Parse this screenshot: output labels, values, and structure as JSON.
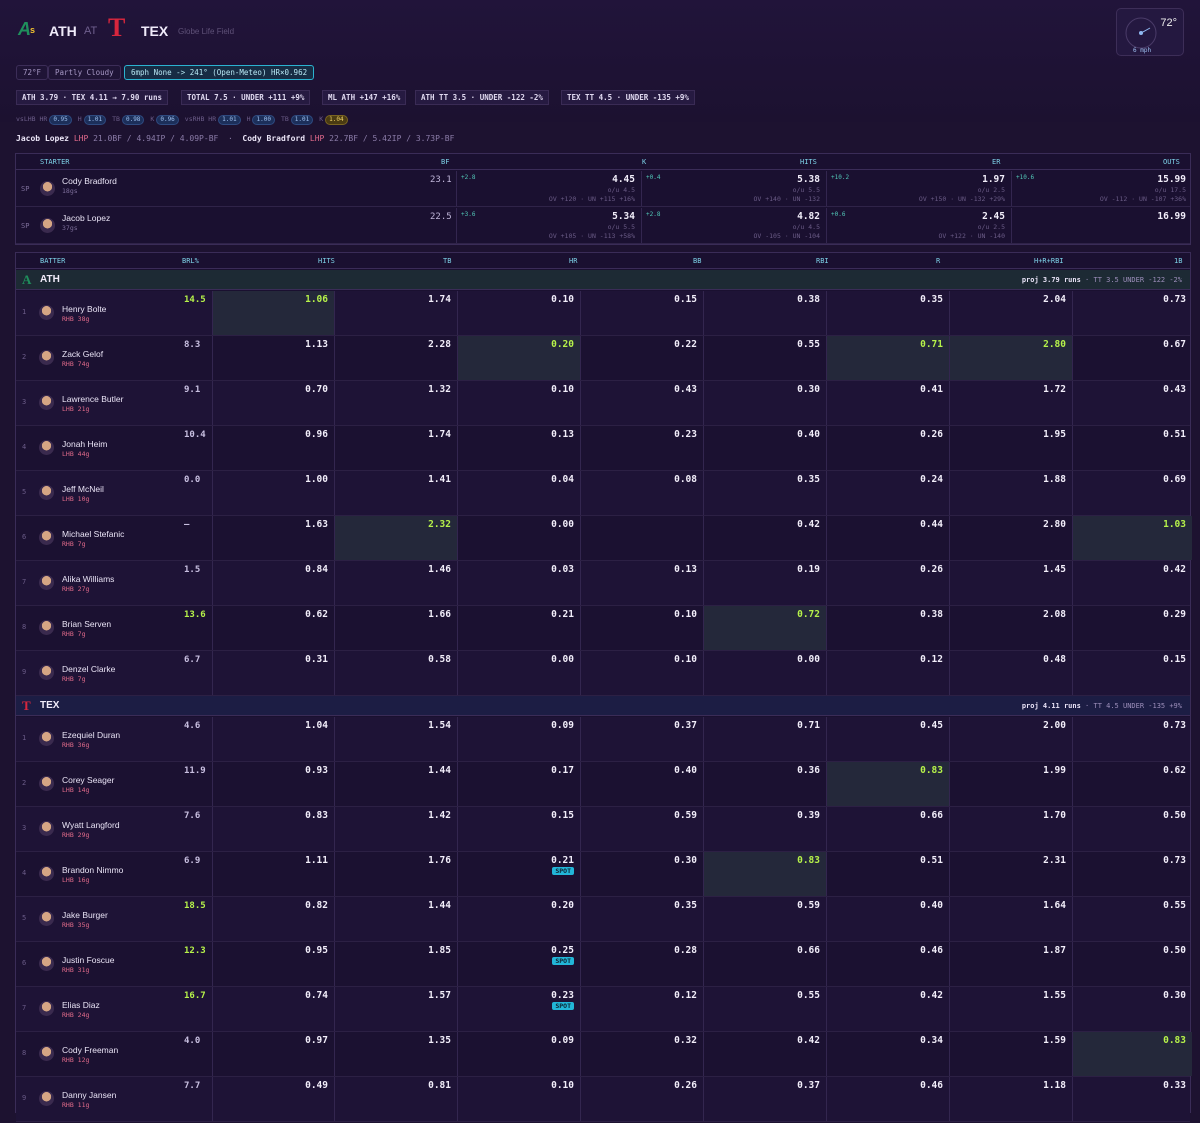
{
  "header": {
    "away_abbr": "ATH",
    "at": "AT",
    "home_abbr": "TEX",
    "venue": "Globe Life Field",
    "weather_temp": "72°",
    "weather_wind": "6 mph"
  },
  "chips": {
    "temp": "72°F",
    "sky": "Partly Cloudy",
    "wind": "6mph None -> 241° (Open-Meteo) HR×0.962"
  },
  "markets": [
    "ATH 3.79 · TEX 4.11 → 7.90 runs",
    "TOTAL 7.5 · UNDER +111 +9%",
    "ML ATH +147 +16%",
    "ATH TT 3.5 · UNDER -122 -2%",
    "TEX TT 4.5 · UNDER -135 +9%"
  ],
  "park_factors": [
    {
      "k": "vsLHB HR",
      "v": "0.95"
    },
    {
      "k": "H",
      "v": "1.01"
    },
    {
      "k": "TB",
      "v": "0.98"
    },
    {
      "k": "K",
      "v": "0.96"
    },
    {
      "k": "vsRHB HR",
      "v": "1.01"
    },
    {
      "k": "H",
      "v": "1.00"
    },
    {
      "k": "TB",
      "v": "1.01"
    },
    {
      "k": "K",
      "v": "1.04"
    }
  ],
  "probables": {
    "away_name": "Jacob Lopez",
    "away_hand": "LHP",
    "away_line": "21.0BF / 4.94IP / 4.09P-BF",
    "home_name": "Cody Bradford",
    "home_hand": "LHP",
    "home_line": "22.7BF / 5.42IP / 3.73P-BF"
  },
  "pitcher_table": {
    "headers": [
      "STARTER",
      "BF",
      "K",
      "HITS",
      "ER",
      "OUTS"
    ],
    "rows": [
      {
        "role": "SP",
        "name": "Cody Bradford",
        "sub": "18gs",
        "bf": "23.1",
        "k": {
          "v": "4.45",
          "edge": "+2.8",
          "line": "o/u 4.5",
          "odds": "OV +120 · UN +115 +16%"
        },
        "hits": {
          "v": "5.38",
          "edge": "+0.4",
          "line": "o/u 5.5",
          "odds": "OV +140 · UN -132"
        },
        "er": {
          "v": "1.97",
          "edge": "+10.2",
          "line": "o/u 2.5",
          "odds": "OV +150 · UN -132 +29%"
        },
        "outs": {
          "v": "15.99",
          "edge": "+10.6",
          "line": "o/u 17.5",
          "odds": "OV -112 · UN -107 +36%"
        }
      },
      {
        "role": "SP",
        "name": "Jacob Lopez",
        "sub": "37gs",
        "bf": "22.5",
        "k": {
          "v": "5.34",
          "edge": "+3.6",
          "line": "o/u 5.5",
          "odds": "OV +105 · UN -113 +58%"
        },
        "hits": {
          "v": "4.82",
          "edge": "+2.8",
          "line": "o/u 4.5",
          "odds": "OV -105 · UN -104"
        },
        "er": {
          "v": "2.45",
          "edge": "+0.6",
          "line": "o/u 2.5",
          "odds": "OV +122 · UN -140"
        },
        "outs": {
          "v": "16.99",
          "edge": "",
          "line": "",
          "odds": ""
        }
      }
    ]
  },
  "batter_headers": [
    "BATTER",
    "BRL%",
    "HITS",
    "TB",
    "HR",
    "BB",
    "RBI",
    "R",
    "H+R+RBI",
    "1B"
  ],
  "teams": [
    {
      "abbr": "ATH",
      "proj": "proj 3.79 runs",
      "tt": "TT 3.5 UNDER -122 -2%",
      "batters": [
        {
          "o": "1",
          "name": "Henry Bolte",
          "hand": "RHB 38g",
          "brl": "14.5",
          "c": [
            "1.06",
            "1.74",
            "0.10",
            "0.15",
            "0.38",
            "0.35",
            "2.04",
            "0.73"
          ]
        },
        {
          "o": "2",
          "name": "Zack Gelof",
          "hand": "RHB 74g",
          "brl": "8.3",
          "c": [
            "1.13",
            "2.28",
            "0.20",
            "0.22",
            "0.55",
            "0.71",
            "2.80",
            "0.67"
          ]
        },
        {
          "o": "3",
          "name": "Lawrence Butler",
          "hand": "LHB 21g",
          "brl": "9.1",
          "c": [
            "0.70",
            "1.32",
            "0.10",
            "0.43",
            "0.30",
            "0.41",
            "1.72",
            "0.43"
          ]
        },
        {
          "o": "4",
          "name": "Jonah Heim",
          "hand": "LHB 44g",
          "brl": "10.4",
          "c": [
            "0.96",
            "1.74",
            "0.13",
            "0.23",
            "0.40",
            "0.26",
            "1.95",
            "0.51"
          ]
        },
        {
          "o": "5",
          "name": "Jeff McNeil",
          "hand": "LHB 10g",
          "brl": "0.0",
          "c": [
            "1.00",
            "1.41",
            "0.04",
            "0.08",
            "0.35",
            "0.24",
            "1.88",
            "0.69"
          ]
        },
        {
          "o": "6",
          "name": "Michael Stefanic",
          "hand": "RHB 7g",
          "brl": "—",
          "c": [
            "1.63",
            "2.32",
            "0.00",
            "",
            "0.42",
            "0.44",
            "2.80",
            "1.03"
          ]
        },
        {
          "o": "7",
          "name": "Alika Williams",
          "hand": "RHB 27g",
          "brl": "1.5",
          "c": [
            "0.84",
            "1.46",
            "0.03",
            "0.13",
            "0.19",
            "0.26",
            "1.45",
            "0.42"
          ]
        },
        {
          "o": "8",
          "name": "Brian Serven",
          "hand": "RHB 7g",
          "brl": "13.6",
          "c": [
            "0.62",
            "1.66",
            "0.21",
            "0.10",
            "0.72",
            "0.38",
            "2.08",
            "0.29"
          ]
        },
        {
          "o": "9",
          "name": "Denzel Clarke",
          "hand": "RHB 7g",
          "brl": "6.7",
          "c": [
            "0.31",
            "0.58",
            "0.00",
            "0.10",
            "0.00",
            "0.12",
            "0.48",
            "0.15"
          ]
        }
      ]
    },
    {
      "abbr": "TEX",
      "proj": "proj 4.11 runs",
      "tt": "TT 4.5 UNDER -135 +9%",
      "batters": [
        {
          "o": "1",
          "name": "Ezequiel Duran",
          "hand": "RHB 36g",
          "brl": "4.6",
          "c": [
            "1.04",
            "1.54",
            "0.09",
            "0.37",
            "0.71",
            "0.45",
            "2.00",
            "0.73"
          ]
        },
        {
          "o": "2",
          "name": "Corey Seager",
          "hand": "LHB 14g",
          "brl": "11.9",
          "c": [
            "0.93",
            "1.44",
            "0.17",
            "0.40",
            "0.36",
            "0.83",
            "1.99",
            "0.62"
          ]
        },
        {
          "o": "3",
          "name": "Wyatt Langford",
          "hand": "RHB 29g",
          "brl": "7.6",
          "c": [
            "0.83",
            "1.42",
            "0.15",
            "0.59",
            "0.39",
            "0.66",
            "1.70",
            "0.50"
          ]
        },
        {
          "o": "4",
          "name": "Brandon Nimmo",
          "hand": "LHB 16g",
          "brl": "6.9",
          "c": [
            "1.11",
            "1.76",
            "0.21",
            "0.30",
            "0.83",
            "0.51",
            "2.31",
            "0.73"
          ]
        },
        {
          "o": "5",
          "name": "Jake Burger",
          "hand": "RHB 35g",
          "brl": "18.5",
          "c": [
            "0.82",
            "1.44",
            "0.20",
            "0.35",
            "0.59",
            "0.40",
            "1.64",
            "0.55"
          ]
        },
        {
          "o": "6",
          "name": "Justin Foscue",
          "hand": "RHB 31g",
          "brl": "12.3",
          "c": [
            "0.95",
            "1.85",
            "0.25",
            "0.28",
            "0.66",
            "0.46",
            "1.87",
            "0.50"
          ]
        },
        {
          "o": "7",
          "name": "Elias Diaz",
          "hand": "RHB 24g",
          "brl": "16.7",
          "c": [
            "0.74",
            "1.57",
            "0.23",
            "0.12",
            "0.55",
            "0.42",
            "1.55",
            "0.30"
          ]
        },
        {
          "o": "8",
          "name": "Cody Freeman",
          "hand": "RHB 12g",
          "brl": "4.0",
          "c": [
            "0.97",
            "1.35",
            "0.09",
            "0.32",
            "0.42",
            "0.34",
            "1.59",
            "0.83"
          ]
        },
        {
          "o": "9",
          "name": "Danny Jansen",
          "hand": "RHB 11g",
          "brl": "7.7",
          "c": [
            "0.49",
            "0.81",
            "0.10",
            "0.26",
            "0.37",
            "0.46",
            "1.18",
            "0.33"
          ]
        }
      ]
    }
  ],
  "spot_label": "SPOT",
  "colors": {
    "accent": "#7ed3e8",
    "highlight_green": "#b6f24a",
    "edge_teal": "#52c8b8",
    "lhp": "#e26a8c",
    "tex_red": "#d7263d",
    "ath_green": "#0f6b48"
  }
}
